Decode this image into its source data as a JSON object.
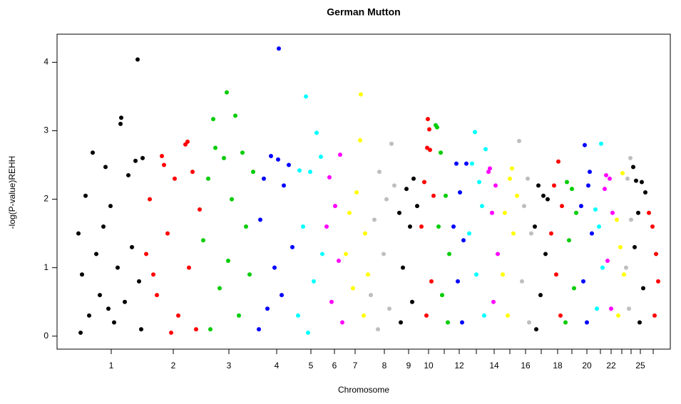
{
  "chart_data": {
    "type": "scatter",
    "title": "German Mutton",
    "x_label": "Chromosome",
    "y_label": "-log(P-value)REHH",
    "xlim": [
      0,
      860
    ],
    "ylim": [
      -0.19,
      4.41
    ],
    "yticks": [
      0,
      1,
      2,
      3,
      4
    ],
    "xticks": [
      76,
      163,
      241,
      308,
      356,
      389,
      418,
      459,
      493,
      521,
      543,
      564,
      588,
      613,
      635,
      657,
      679,
      702,
      722,
      743,
      762,
      777,
      792,
      805,
      818,
      836
    ],
    "categories": [
      "1",
      "2",
      "3",
      "4",
      "5",
      "6",
      "7",
      "8",
      "9",
      "10",
      null,
      "12",
      null,
      "14",
      null,
      "16",
      null,
      "18",
      null,
      "20",
      null,
      "22",
      null,
      null,
      "25",
      null
    ],
    "series": [
      {
        "color": "#000000",
        "x": [
          113,
          90,
          89,
          50,
          120,
          110,
          68,
          100,
          40,
          75,
          30,
          35,
          45,
          55,
          60,
          65,
          80,
          85,
          95,
          105,
          115,
          118,
          33,
          72
        ],
        "values": [
          4.04,
          3.19,
          3.1,
          2.68,
          2.6,
          2.56,
          2.47,
          2.35,
          2.05,
          1.9,
          1.5,
          0.9,
          0.3,
          1.2,
          0.6,
          1.6,
          0.2,
          1.0,
          0.5,
          1.3,
          0.8,
          0.1,
          0.05,
          0.4
        ]
      },
      {
        "color": "#ff0000",
        "x": [
          183,
          180,
          147,
          150,
          190,
          165,
          130,
          200,
          125,
          140,
          155,
          170,
          185,
          195,
          135,
          160
        ],
        "values": [
          2.84,
          2.8,
          2.63,
          2.5,
          2.4,
          2.3,
          2.0,
          1.85,
          1.2,
          0.6,
          1.5,
          0.3,
          1.0,
          0.1,
          0.9,
          0.05
        ]
      },
      {
        "color": "#00cd00",
        "x": [
          238,
          250,
          219,
          222,
          260,
          234,
          212,
          275,
          245,
          205,
          228,
          240,
          255,
          265,
          270,
          215
        ],
        "values": [
          3.56,
          3.22,
          3.17,
          2.75,
          2.68,
          2.6,
          2.3,
          2.4,
          2.0,
          1.4,
          0.7,
          1.1,
          0.3,
          1.6,
          0.9,
          0.1
        ]
      },
      {
        "color": "#0000ff",
        "x": [
          311,
          300,
          310,
          325,
          290,
          318,
          285,
          305,
          295,
          330,
          315,
          283
        ],
        "values": [
          4.2,
          2.63,
          2.58,
          2.5,
          2.3,
          2.2,
          1.7,
          1.0,
          0.4,
          1.3,
          0.6,
          0.1
        ]
      },
      {
        "color": "#00ffff",
        "x": [
          349,
          364,
          340,
          370,
          355,
          345,
          360,
          338,
          372,
          352
        ],
        "values": [
          3.5,
          2.97,
          2.42,
          2.62,
          2.4,
          1.6,
          0.8,
          0.3,
          1.2,
          0.05
        ]
      },
      {
        "color": "#ff00ff",
        "x": [
          397,
          382,
          390,
          378,
          395,
          385,
          400
        ],
        "values": [
          2.65,
          2.32,
          1.9,
          1.6,
          1.1,
          0.5,
          0.2
        ]
      },
      {
        "color": "#ffff00",
        "x": [
          426,
          425,
          420,
          410,
          432,
          405,
          415,
          430,
          436
        ],
        "values": [
          3.53,
          2.86,
          2.1,
          1.8,
          1.5,
          1.2,
          0.7,
          0.3,
          0.9
        ]
      },
      {
        "color": "#bebebe",
        "x": [
          469,
          452,
          462,
          445,
          473,
          458,
          440,
          466,
          450
        ],
        "values": [
          2.81,
          2.4,
          2.0,
          1.7,
          2.2,
          1.2,
          0.6,
          0.4,
          0.1
        ]
      },
      {
        "color": "#000000",
        "x": [
          500,
          490,
          480,
          495,
          505,
          485,
          498,
          482
        ],
        "values": [
          2.3,
          2.15,
          1.8,
          1.6,
          1.9,
          1.0,
          0.5,
          0.2
        ]
      },
      {
        "color": "#ff0000",
        "x": [
          520,
          522,
          519,
          523,
          515,
          528,
          511,
          525,
          518
        ],
        "values": [
          3.17,
          3.02,
          2.75,
          2.72,
          2.25,
          2.05,
          1.6,
          0.8,
          0.3
        ]
      },
      {
        "color": "#00cd00",
        "x": [
          531,
          533,
          538,
          545,
          535,
          550,
          540,
          548
        ],
        "values": [
          3.08,
          3.05,
          2.68,
          2.05,
          1.6,
          1.2,
          0.6,
          0.2
        ]
      },
      {
        "color": "#0000ff",
        "x": [
          560,
          574,
          565,
          556,
          570,
          562,
          568
        ],
        "values": [
          2.52,
          2.52,
          2.1,
          1.6,
          1.4,
          0.8,
          0.2
        ]
      },
      {
        "color": "#00ffff",
        "x": [
          586,
          601,
          582,
          592,
          596,
          578,
          588,
          599
        ],
        "values": [
          2.98,
          2.73,
          2.52,
          2.25,
          1.9,
          1.5,
          0.9,
          0.3
        ]
      },
      {
        "color": "#ff00ff",
        "x": [
          607,
          605,
          615,
          610,
          618,
          612
        ],
        "values": [
          2.45,
          2.4,
          2.2,
          1.8,
          1.2,
          0.5
        ]
      },
      {
        "color": "#ffff00",
        "x": [
          638,
          635,
          645,
          628,
          640,
          625,
          632
        ],
        "values": [
          2.45,
          2.3,
          2.05,
          1.8,
          1.5,
          0.9,
          0.3
        ]
      },
      {
        "color": "#bebebe",
        "x": [
          648,
          660,
          655,
          665,
          652,
          662
        ],
        "values": [
          2.85,
          2.3,
          1.9,
          1.5,
          0.8,
          0.2
        ]
      },
      {
        "color": "#000000",
        "x": [
          675,
          688,
          682,
          670,
          685,
          678,
          672
        ],
        "values": [
          2.2,
          2.0,
          2.05,
          1.6,
          1.2,
          0.6,
          0.1
        ]
      },
      {
        "color": "#ff0000",
        "x": [
          703,
          697,
          708,
          693,
          700,
          706
        ],
        "values": [
          2.55,
          2.2,
          1.9,
          1.5,
          0.9,
          0.3
        ]
      },
      {
        "color": "#00cd00",
        "x": [
          715,
          722,
          728,
          718,
          725,
          713
        ],
        "values": [
          2.25,
          2.15,
          1.8,
          1.4,
          0.7,
          0.2
        ]
      },
      {
        "color": "#0000ff",
        "x": [
          740,
          747,
          745,
          735,
          750,
          738,
          743
        ],
        "values": [
          2.79,
          2.4,
          2.2,
          1.9,
          1.5,
          0.8,
          0.2
        ]
      },
      {
        "color": "#00ffff",
        "x": [
          763,
          755,
          760,
          765,
          757
        ],
        "values": [
          2.81,
          1.85,
          1.6,
          1.0,
          0.4
        ]
      },
      {
        "color": "#ff00ff",
        "x": [
          770,
          775,
          768,
          779,
          772,
          777
        ],
        "values": [
          2.35,
          2.3,
          2.15,
          1.8,
          1.1,
          0.4
        ]
      },
      {
        "color": "#ffff00",
        "x": [
          793,
          785,
          790,
          795,
          787
        ],
        "values": [
          2.38,
          1.7,
          1.3,
          0.9,
          0.3
        ]
      },
      {
        "color": "#bebebe",
        "x": [
          804,
          800,
          805,
          798,
          802
        ],
        "values": [
          2.6,
          2.3,
          1.7,
          1.0,
          0.4
        ]
      },
      {
        "color": "#000000",
        "x": [
          808,
          812,
          820,
          825,
          815,
          810,
          822,
          817
        ],
        "values": [
          2.47,
          2.27,
          2.25,
          2.1,
          1.8,
          1.3,
          0.7,
          0.2
        ]
      },
      {
        "color": "#ff0000",
        "x": [
          830,
          835,
          840,
          843,
          838
        ],
        "values": [
          1.8,
          1.6,
          1.2,
          0.8,
          0.3
        ]
      }
    ]
  }
}
